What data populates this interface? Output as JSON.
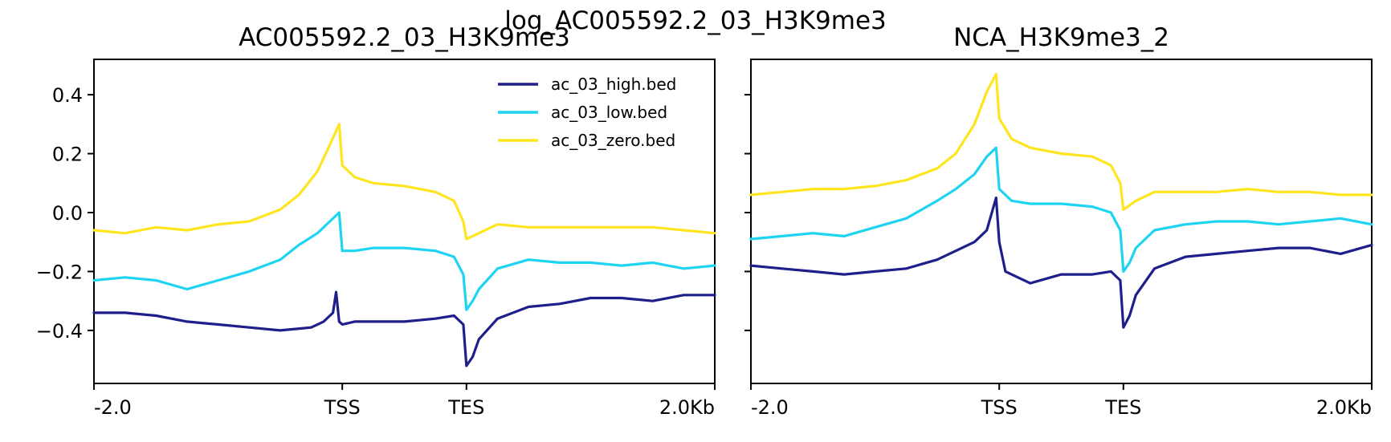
{
  "figure": {
    "suptitle": "log_AC005592.2_03_H3K9me3"
  },
  "chart_data": [
    {
      "type": "line",
      "title": "AC005592.2_03_H3K9me3",
      "x_ticks": [
        "-2.0",
        "TSS",
        "TES",
        "2.0Kb"
      ],
      "y_ticks": [
        "0.4",
        "0.2",
        "0.0",
        "−0.2",
        "−0.4"
      ],
      "ylim": [
        -0.58,
        0.52
      ],
      "grid": false,
      "legend": "top-right",
      "series": [
        {
          "name": "ac_03_high.bed",
          "color": "#1f1f8c",
          "points": [
            [
              0,
              -0.34
            ],
            [
              0.05,
              -0.34
            ],
            [
              0.1,
              -0.35
            ],
            [
              0.15,
              -0.37
            ],
            [
              0.2,
              -0.38
            ],
            [
              0.25,
              -0.39
            ],
            [
              0.3,
              -0.4
            ],
            [
              0.35,
              -0.39
            ],
            [
              0.37,
              -0.37
            ],
            [
              0.385,
              -0.34
            ],
            [
              0.39,
              -0.27
            ],
            [
              0.395,
              -0.37
            ],
            [
              0.4,
              -0.38
            ],
            [
              0.42,
              -0.37
            ],
            [
              0.45,
              -0.37
            ],
            [
              0.5,
              -0.37
            ],
            [
              0.55,
              -0.36
            ],
            [
              0.58,
              -0.35
            ],
            [
              0.595,
              -0.38
            ],
            [
              0.6,
              -0.52
            ],
            [
              0.61,
              -0.49
            ],
            [
              0.62,
              -0.43
            ],
            [
              0.65,
              -0.36
            ],
            [
              0.7,
              -0.32
            ],
            [
              0.75,
              -0.31
            ],
            [
              0.8,
              -0.29
            ],
            [
              0.85,
              -0.29
            ],
            [
              0.9,
              -0.3
            ],
            [
              0.95,
              -0.28
            ],
            [
              1,
              -0.28
            ]
          ]
        },
        {
          "name": "ac_03_low.bed",
          "color": "#1fd4f2",
          "points": [
            [
              0,
              -0.23
            ],
            [
              0.05,
              -0.22
            ],
            [
              0.1,
              -0.23
            ],
            [
              0.15,
              -0.26
            ],
            [
              0.2,
              -0.23
            ],
            [
              0.25,
              -0.2
            ],
            [
              0.3,
              -0.16
            ],
            [
              0.33,
              -0.11
            ],
            [
              0.36,
              -0.07
            ],
            [
              0.38,
              -0.03
            ],
            [
              0.395,
              0.0
            ],
            [
              0.4,
              -0.13
            ],
            [
              0.42,
              -0.13
            ],
            [
              0.45,
              -0.12
            ],
            [
              0.5,
              -0.12
            ],
            [
              0.55,
              -0.13
            ],
            [
              0.58,
              -0.15
            ],
            [
              0.595,
              -0.21
            ],
            [
              0.6,
              -0.33
            ],
            [
              0.61,
              -0.3
            ],
            [
              0.62,
              -0.26
            ],
            [
              0.65,
              -0.19
            ],
            [
              0.7,
              -0.16
            ],
            [
              0.75,
              -0.17
            ],
            [
              0.8,
              -0.17
            ],
            [
              0.85,
              -0.18
            ],
            [
              0.9,
              -0.17
            ],
            [
              0.95,
              -0.19
            ],
            [
              1,
              -0.18
            ]
          ]
        },
        {
          "name": "ac_03_zero.bed",
          "color": "#ffe51f",
          "points": [
            [
              0,
              -0.06
            ],
            [
              0.05,
              -0.07
            ],
            [
              0.1,
              -0.05
            ],
            [
              0.15,
              -0.06
            ],
            [
              0.2,
              -0.04
            ],
            [
              0.25,
              -0.03
            ],
            [
              0.3,
              0.01
            ],
            [
              0.33,
              0.06
            ],
            [
              0.36,
              0.14
            ],
            [
              0.38,
              0.23
            ],
            [
              0.395,
              0.3
            ],
            [
              0.4,
              0.16
            ],
            [
              0.42,
              0.12
            ],
            [
              0.45,
              0.1
            ],
            [
              0.5,
              0.09
            ],
            [
              0.55,
              0.07
            ],
            [
              0.58,
              0.04
            ],
            [
              0.595,
              -0.03
            ],
            [
              0.6,
              -0.09
            ],
            [
              0.62,
              -0.07
            ],
            [
              0.65,
              -0.04
            ],
            [
              0.7,
              -0.05
            ],
            [
              0.75,
              -0.05
            ],
            [
              0.8,
              -0.05
            ],
            [
              0.85,
              -0.05
            ],
            [
              0.9,
              -0.05
            ],
            [
              0.95,
              -0.06
            ],
            [
              1,
              -0.07
            ]
          ]
        }
      ]
    },
    {
      "type": "line",
      "title": "NCA_H3K9me3_2",
      "x_ticks": [
        "-2.0",
        "TSS",
        "TES",
        "2.0Kb"
      ],
      "y_ticks": [],
      "ylim": [
        -0.58,
        0.52
      ],
      "grid": false,
      "series": [
        {
          "name": "ac_03_high.bed",
          "color": "#1f1f8c",
          "points": [
            [
              0,
              -0.18
            ],
            [
              0.05,
              -0.19
            ],
            [
              0.1,
              -0.2
            ],
            [
              0.15,
              -0.21
            ],
            [
              0.2,
              -0.2
            ],
            [
              0.25,
              -0.19
            ],
            [
              0.3,
              -0.16
            ],
            [
              0.33,
              -0.13
            ],
            [
              0.36,
              -0.1
            ],
            [
              0.38,
              -0.06
            ],
            [
              0.395,
              0.05
            ],
            [
              0.4,
              -0.1
            ],
            [
              0.41,
              -0.2
            ],
            [
              0.43,
              -0.22
            ],
            [
              0.45,
              -0.24
            ],
            [
              0.5,
              -0.21
            ],
            [
              0.55,
              -0.21
            ],
            [
              0.58,
              -0.2
            ],
            [
              0.595,
              -0.23
            ],
            [
              0.6,
              -0.39
            ],
            [
              0.61,
              -0.35
            ],
            [
              0.62,
              -0.28
            ],
            [
              0.65,
              -0.19
            ],
            [
              0.7,
              -0.15
            ],
            [
              0.75,
              -0.14
            ],
            [
              0.8,
              -0.13
            ],
            [
              0.85,
              -0.12
            ],
            [
              0.9,
              -0.12
            ],
            [
              0.95,
              -0.14
            ],
            [
              1,
              -0.11
            ]
          ]
        },
        {
          "name": "ac_03_low.bed",
          "color": "#1fd4f2",
          "points": [
            [
              0,
              -0.09
            ],
            [
              0.05,
              -0.08
            ],
            [
              0.1,
              -0.07
            ],
            [
              0.15,
              -0.08
            ],
            [
              0.2,
              -0.05
            ],
            [
              0.25,
              -0.02
            ],
            [
              0.3,
              0.04
            ],
            [
              0.33,
              0.08
            ],
            [
              0.36,
              0.13
            ],
            [
              0.38,
              0.19
            ],
            [
              0.395,
              0.22
            ],
            [
              0.4,
              0.08
            ],
            [
              0.42,
              0.04
            ],
            [
              0.45,
              0.03
            ],
            [
              0.5,
              0.03
            ],
            [
              0.55,
              0.02
            ],
            [
              0.58,
              0.0
            ],
            [
              0.595,
              -0.06
            ],
            [
              0.6,
              -0.2
            ],
            [
              0.61,
              -0.17
            ],
            [
              0.62,
              -0.12
            ],
            [
              0.65,
              -0.06
            ],
            [
              0.7,
              -0.04
            ],
            [
              0.75,
              -0.03
            ],
            [
              0.8,
              -0.03
            ],
            [
              0.85,
              -0.04
            ],
            [
              0.9,
              -0.03
            ],
            [
              0.95,
              -0.02
            ],
            [
              1,
              -0.04
            ]
          ]
        },
        {
          "name": "ac_03_zero.bed",
          "color": "#ffe51f",
          "points": [
            [
              0,
              0.06
            ],
            [
              0.05,
              0.07
            ],
            [
              0.1,
              0.08
            ],
            [
              0.15,
              0.08
            ],
            [
              0.2,
              0.09
            ],
            [
              0.25,
              0.11
            ],
            [
              0.3,
              0.15
            ],
            [
              0.33,
              0.2
            ],
            [
              0.36,
              0.3
            ],
            [
              0.38,
              0.41
            ],
            [
              0.395,
              0.47
            ],
            [
              0.4,
              0.32
            ],
            [
              0.42,
              0.25
            ],
            [
              0.45,
              0.22
            ],
            [
              0.5,
              0.2
            ],
            [
              0.55,
              0.19
            ],
            [
              0.58,
              0.16
            ],
            [
              0.595,
              0.1
            ],
            [
              0.6,
              0.01
            ],
            [
              0.62,
              0.04
            ],
            [
              0.65,
              0.07
            ],
            [
              0.7,
              0.07
            ],
            [
              0.75,
              0.07
            ],
            [
              0.8,
              0.08
            ],
            [
              0.85,
              0.07
            ],
            [
              0.9,
              0.07
            ],
            [
              0.95,
              0.06
            ],
            [
              1,
              0.06
            ]
          ]
        }
      ]
    }
  ]
}
